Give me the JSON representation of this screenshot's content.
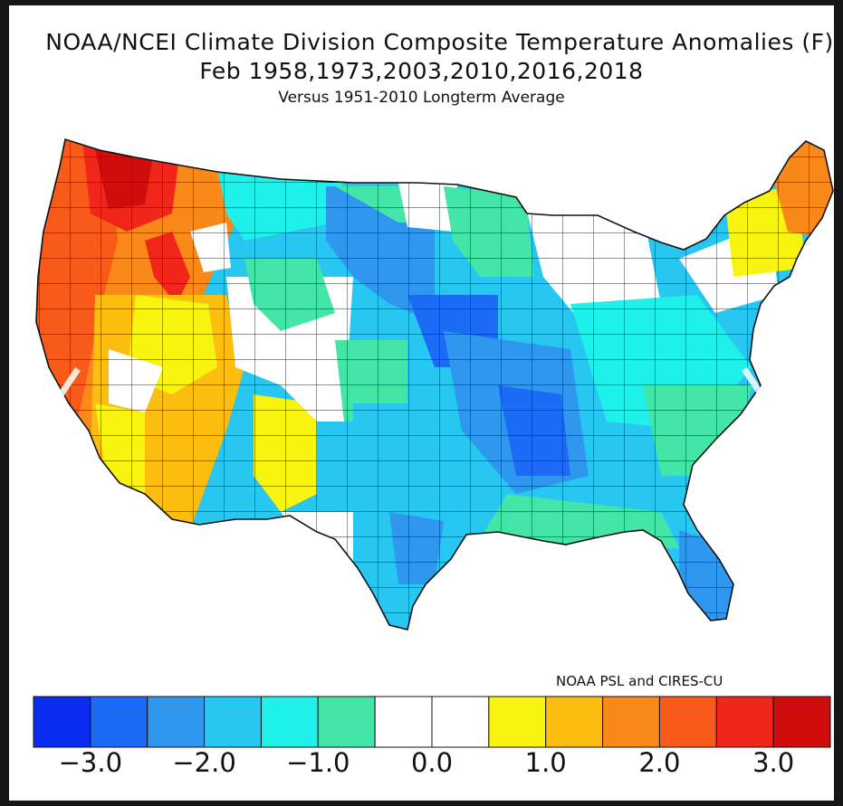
{
  "title_line1": "NOAA/NCEI Climate Division Composite Temperature Anomalies (F)",
  "title_line2": "Feb   1958,1973,2003,2010,2016,2018",
  "title_line3": "Versus 1951-2010 Longterm Average",
  "credit": "NOAA PSL and CIRES-CU",
  "colorbar": {
    "colors": [
      "#0a2cf0",
      "#1c6af5",
      "#2f98ee",
      "#27c7f2",
      "#1ff0ea",
      "#43e6a6",
      "#ffffff",
      "#ffffff",
      "#f8f30f",
      "#fbbd10",
      "#f98a1a",
      "#f85a1a",
      "#f1261a",
      "#cf0d0d"
    ],
    "tick_labels": [
      "−3.0",
      "−2.0",
      "−1.0",
      "0.0",
      "1.0",
      "2.0",
      "3.0"
    ]
  },
  "legend_scale": {
    "min": -3.5,
    "max": 3.5,
    "step": 0.5,
    "unit": "F"
  },
  "nav": {
    "prev_icon": "chevron-left-icon",
    "next_icon": "chevron-right-icon"
  }
}
